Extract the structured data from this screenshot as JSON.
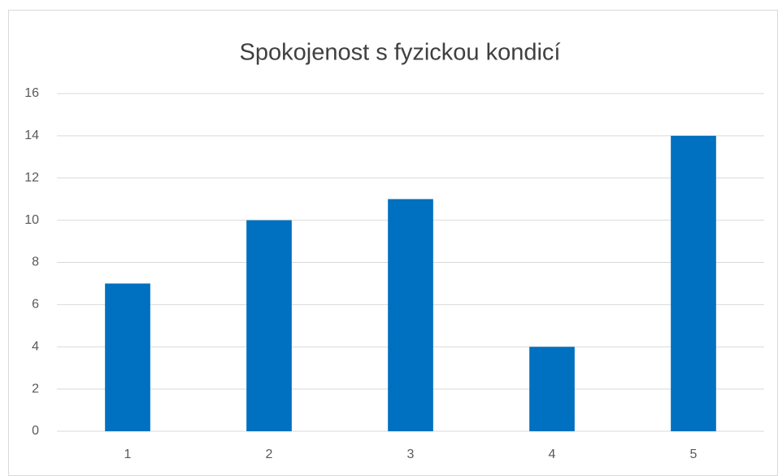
{
  "chart_data": {
    "type": "bar",
    "title": "Spokojenost s fyzickou kondicí",
    "categories": [
      "1",
      "2",
      "3",
      "4",
      "5"
    ],
    "values": [
      7,
      10,
      11,
      4,
      14
    ],
    "color": "#0070c0",
    "ylim": [
      0,
      16
    ],
    "yticks": [
      0,
      2,
      4,
      6,
      8,
      10,
      12,
      14,
      16
    ],
    "grid": true
  }
}
